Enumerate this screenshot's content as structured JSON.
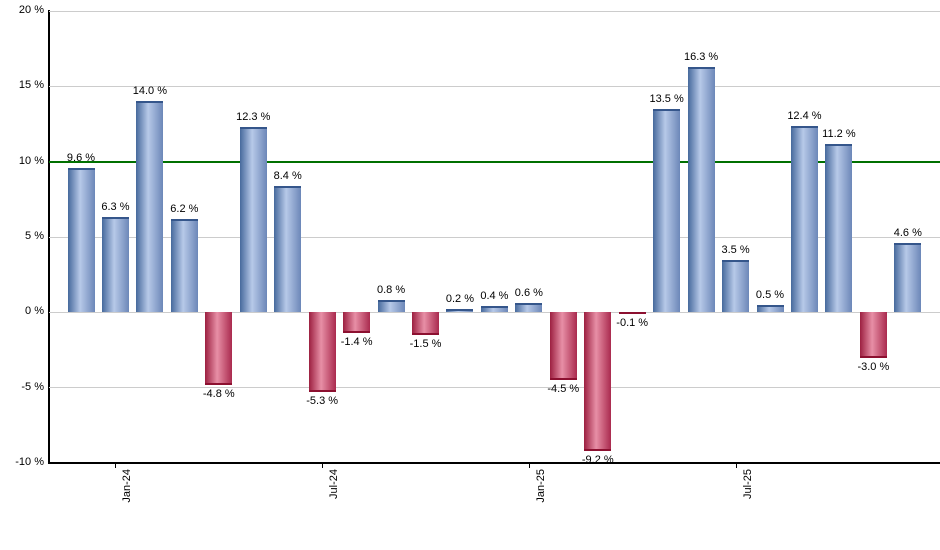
{
  "chart_data": {
    "type": "bar",
    "title": "",
    "xlabel": "",
    "ylabel": "",
    "ylim": [
      -10,
      20
    ],
    "ytick_step": 5,
    "grid": true,
    "legend": null,
    "ytick_values": [
      20,
      15,
      10,
      5,
      0,
      -5,
      -10
    ],
    "ytick_labels": [
      "20 %",
      "15 %",
      "10 %",
      "5 %",
      "0 %",
      "-5 %",
      "-10 %"
    ],
    "values": [
      9.6,
      6.3,
      14.0,
      6.2,
      -4.8,
      12.3,
      8.4,
      -5.3,
      -1.4,
      0.8,
      -1.5,
      0.2,
      0.4,
      0.6,
      -4.5,
      -9.2,
      -0.1,
      13.5,
      16.3,
      3.5,
      0.5,
      12.4,
      11.2,
      -3.0,
      4.6
    ],
    "value_labels": [
      "9.6 %",
      "6.3 %",
      "14.0 %",
      "6.2 %",
      "-4.8 %",
      "12.3 %",
      "8.4 %",
      "-5.3 %",
      "-1.4 %",
      "0.8 %",
      "-1.5 %",
      "0.2 %",
      "0.4 %",
      "0.6 %",
      "-4.5 %",
      "-9.2 %",
      "-0.1 %",
      "13.5 %",
      "16.3 %",
      "3.5 %",
      "0.5 %",
      "12.4 %",
      "11.2 %",
      "-3.0 %",
      "4.6 %"
    ],
    "x_ticks": [
      {
        "label": "Jan-24",
        "bar_index": 1
      },
      {
        "label": "Jul-24",
        "bar_index": 7
      },
      {
        "label": "Jan-25",
        "bar_index": 13
      },
      {
        "label": "Jul-25",
        "bar_index": 19
      }
    ],
    "reference_line": {
      "value": 10,
      "color": "#007000"
    },
    "colors": {
      "positive_edge": "#46699c",
      "positive_mid": "#b7c9e8",
      "positive_edge_right": "#6c87b8",
      "positive_cap": "#35568b",
      "negative_edge": "#9c1f40",
      "negative_mid": "#e78fa6",
      "negative_edge_right": "#aa2a4e",
      "negative_cap": "#8c1030",
      "gridline": "#cccccc",
      "axis": "#000000",
      "background": "#ffffff"
    }
  }
}
